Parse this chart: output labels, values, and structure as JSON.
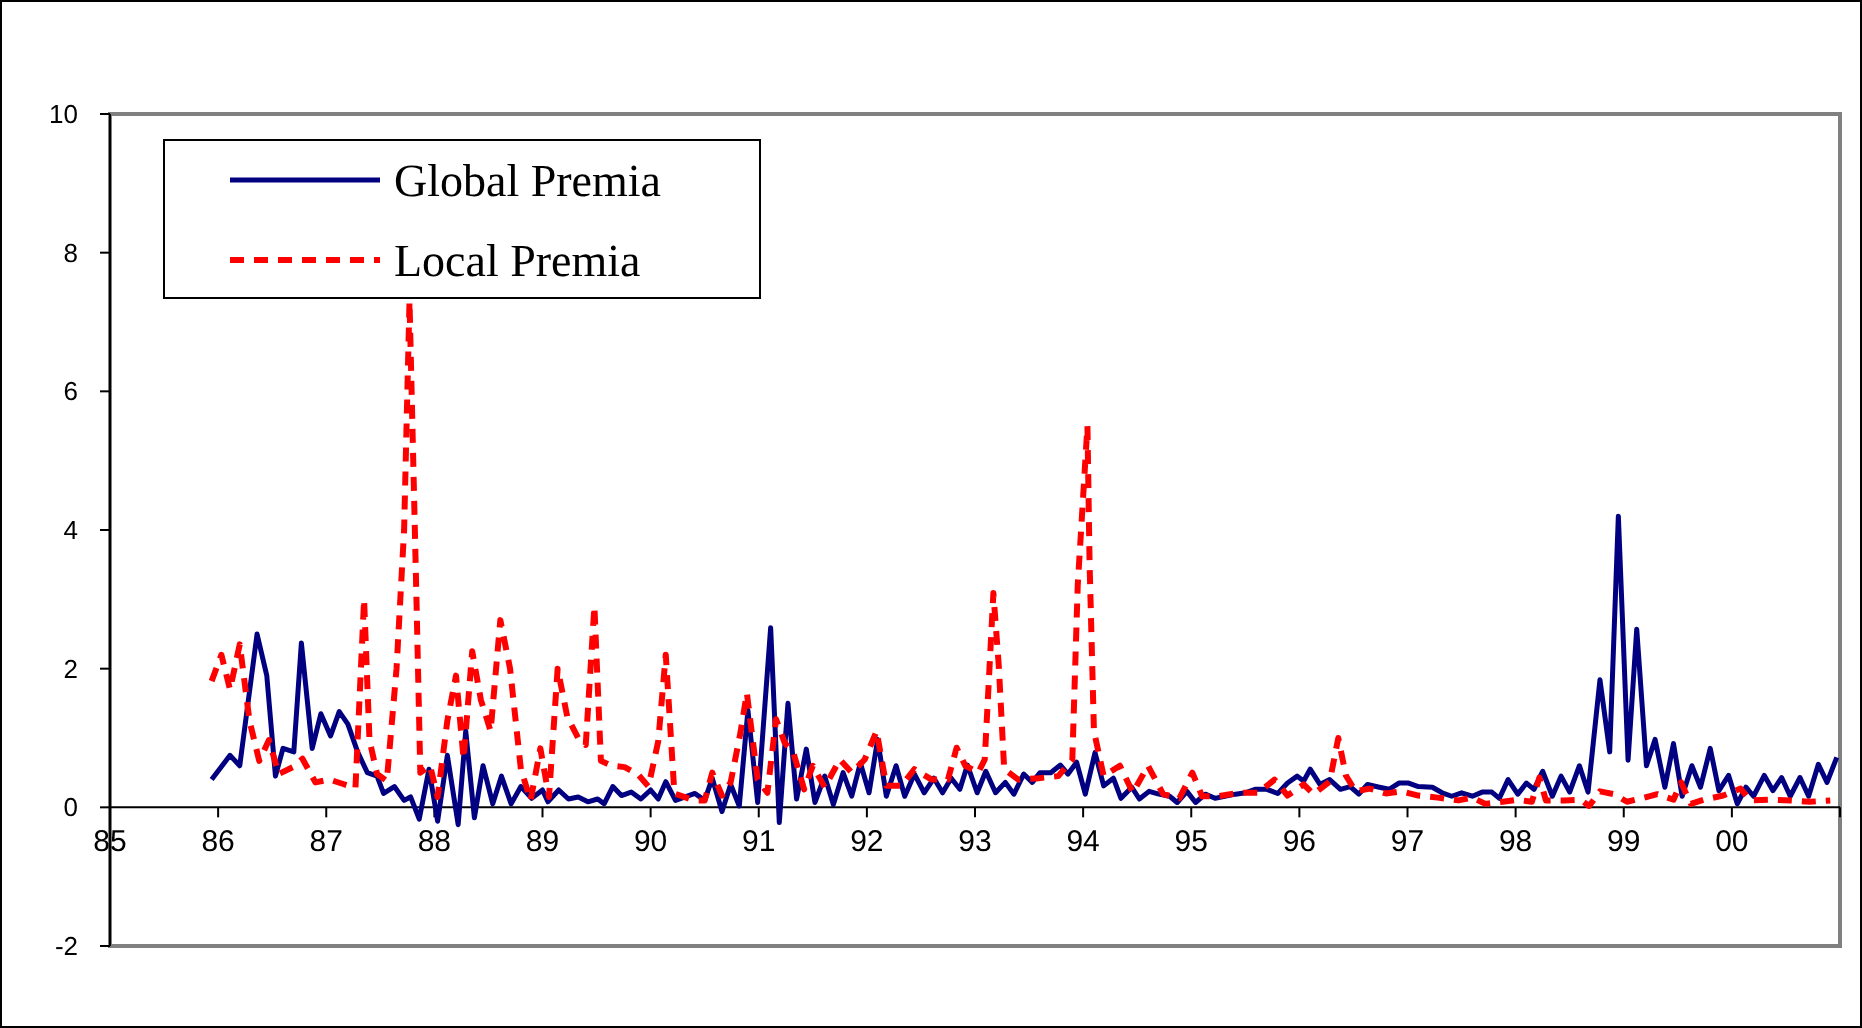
{
  "chart_data": {
    "type": "line",
    "xlim": [
      1985,
      2001
    ],
    "xticks": [
      {
        "value": 1985,
        "label": "85"
      },
      {
        "value": 1986,
        "label": "86"
      },
      {
        "value": 1987,
        "label": "87"
      },
      {
        "value": 1988,
        "label": "88"
      },
      {
        "value": 1989,
        "label": "89"
      },
      {
        "value": 1990,
        "label": "90"
      },
      {
        "value": 1991,
        "label": "91"
      },
      {
        "value": 1992,
        "label": "92"
      },
      {
        "value": 1993,
        "label": "93"
      },
      {
        "value": 1994,
        "label": "94"
      },
      {
        "value": 1995,
        "label": "95"
      },
      {
        "value": 1996,
        "label": "96"
      },
      {
        "value": 1997,
        "label": "97"
      },
      {
        "value": 1998,
        "label": "98"
      },
      {
        "value": 1999,
        "label": "99"
      },
      {
        "value": 2000,
        "label": "00"
      },
      {
        "value": 2001,
        "label": null
      }
    ],
    "ylim": [
      -2,
      10
    ],
    "yticks": [
      -2,
      0,
      2,
      4,
      6,
      8,
      10
    ],
    "grid": false,
    "legend": "top left",
    "marker": "none",
    "series": [
      {
        "name": "Global Premia",
        "color": "#000080",
        "line_style": "solid",
        "x": [
          1985.94,
          1986.11,
          1986.2,
          1986.36,
          1986.45,
          1986.53,
          1986.6,
          1986.7,
          1986.77,
          1986.87,
          1986.95,
          1987.04,
          1987.12,
          1987.2,
          1987.29,
          1987.38,
          1987.47,
          1987.53,
          1987.63,
          1987.72,
          1987.78,
          1987.86,
          1987.95,
          1988.03,
          1988.12,
          1988.22,
          1988.29,
          1988.37,
          1988.45,
          1988.54,
          1988.62,
          1988.71,
          1988.8,
          1988.9,
          1989.0,
          1989.05,
          1989.15,
          1989.24,
          1989.33,
          1989.42,
          1989.51,
          1989.57,
          1989.65,
          1989.73,
          1989.82,
          1989.91,
          1990.0,
          1990.07,
          1990.14,
          1990.23,
          1990.32,
          1990.41,
          1990.5,
          1990.57,
          1990.66,
          1990.74,
          1990.82,
          1990.9,
          1990.99,
          1991.11,
          1991.19,
          1991.27,
          1991.35,
          1991.44,
          1991.52,
          1991.61,
          1991.69,
          1991.78,
          1991.86,
          1991.94,
          1992.02,
          1992.1,
          1992.18,
          1992.27,
          1992.35,
          1992.44,
          1992.53,
          1992.62,
          1992.7,
          1992.78,
          1992.86,
          1992.93,
          1993.02,
          1993.1,
          1993.19,
          1993.28,
          1993.36,
          1993.45,
          1993.53,
          1993.6,
          1993.7,
          1993.79,
          1993.86,
          1993.94,
          1994.02,
          1994.11,
          1994.19,
          1994.28,
          1994.35,
          1994.45,
          1994.52,
          1994.61,
          1994.7,
          1994.8,
          1994.87,
          1994.96,
          1995.04,
          1995.13,
          1995.22,
          1995.31,
          1995.41,
          1995.5,
          1995.59,
          1995.7,
          1995.8,
          1995.89,
          1995.98,
          1996.04,
          1996.1,
          1996.19,
          1996.28,
          1996.38,
          1996.47,
          1996.55,
          1996.63,
          1996.74,
          1996.83,
          1996.92,
          1997.01,
          1997.1,
          1997.23,
          1997.32,
          1997.41,
          1997.5,
          1997.6,
          1997.69,
          1997.78,
          1997.85,
          1997.93,
          1998.02,
          1998.1,
          1998.17,
          1998.25,
          1998.34,
          1998.42,
          1998.5,
          1998.59,
          1998.67,
          1998.78,
          1998.87,
          1998.95,
          1999.04,
          1999.12,
          1999.21,
          1999.29,
          1999.38,
          1999.46,
          1999.54,
          1999.63,
          1999.71,
          1999.8,
          1999.88,
          1999.97,
          2000.05,
          2000.13,
          2000.2,
          2000.3,
          2000.38,
          2000.46,
          2000.54,
          2000.63,
          2000.71,
          2000.8,
          2000.88,
          2000.97
        ],
        "values": [
          0.4,
          0.75,
          0.6,
          2.5,
          1.9,
          0.45,
          0.85,
          0.8,
          2.37,
          0.85,
          1.35,
          1.03,
          1.38,
          1.2,
          0.8,
          0.5,
          0.45,
          0.2,
          0.3,
          0.1,
          0.15,
          -0.17,
          0.55,
          -0.2,
          0.75,
          -0.25,
          1.1,
          -0.15,
          0.6,
          0.05,
          0.45,
          0.05,
          0.3,
          0.13,
          0.25,
          0.08,
          0.25,
          0.12,
          0.15,
          0.08,
          0.12,
          0.05,
          0.3,
          0.17,
          0.22,
          0.12,
          0.25,
          0.12,
          0.37,
          0.1,
          0.15,
          0.2,
          0.1,
          0.42,
          -0.06,
          0.33,
          0.02,
          1.4,
          0.07,
          2.59,
          -0.22,
          1.5,
          0.12,
          0.84,
          0.07,
          0.45,
          0.04,
          0.5,
          0.16,
          0.64,
          0.21,
          0.98,
          0.16,
          0.6,
          0.16,
          0.48,
          0.21,
          0.42,
          0.21,
          0.42,
          0.26,
          0.61,
          0.21,
          0.52,
          0.21,
          0.36,
          0.19,
          0.48,
          0.36,
          0.5,
          0.5,
          0.61,
          0.48,
          0.65,
          0.19,
          0.79,
          0.31,
          0.42,
          0.13,
          0.29,
          0.12,
          0.23,
          0.19,
          0.16,
          0.07,
          0.23,
          0.07,
          0.19,
          0.13,
          0.16,
          0.19,
          0.21,
          0.26,
          0.26,
          0.2,
          0.35,
          0.45,
          0.38,
          0.55,
          0.33,
          0.4,
          0.26,
          0.3,
          0.19,
          0.33,
          0.29,
          0.26,
          0.35,
          0.35,
          0.3,
          0.29,
          0.21,
          0.16,
          0.21,
          0.16,
          0.22,
          0.22,
          0.13,
          0.4,
          0.19,
          0.35,
          0.26,
          0.52,
          0.16,
          0.45,
          0.22,
          0.6,
          0.22,
          1.84,
          0.8,
          4.2,
          0.68,
          2.57,
          0.6,
          0.98,
          0.29,
          0.92,
          0.16,
          0.6,
          0.29,
          0.85,
          0.24,
          0.46,
          0.05,
          0.29,
          0.16,
          0.46,
          0.24,
          0.43,
          0.16,
          0.43,
          0.16,
          0.62,
          0.36,
          0.72
        ]
      },
      {
        "name": "Local Premia",
        "color": "#ff0000",
        "line_style": "dashed",
        "x": [
          1985.94,
          1986.03,
          1986.11,
          1986.2,
          1986.29,
          1986.38,
          1986.47,
          1986.56,
          1986.69,
          1986.78,
          1986.9,
          1987.03,
          1987.15,
          1987.27,
          1987.35,
          1987.4,
          1987.47,
          1987.56,
          1987.65,
          1987.72,
          1987.77,
          1987.83,
          1987.87,
          1987.96,
          1988.03,
          1988.12,
          1988.2,
          1988.27,
          1988.35,
          1988.43,
          1988.52,
          1988.61,
          1988.7,
          1988.8,
          1988.89,
          1988.98,
          1989.06,
          1989.14,
          1989.23,
          1989.33,
          1989.4,
          1989.48,
          1989.54,
          1989.64,
          1989.76,
          1989.88,
          1989.98,
          1990.07,
          1990.14,
          1990.22,
          1990.31,
          1990.4,
          1990.5,
          1990.57,
          1990.66,
          1990.74,
          1990.83,
          1990.89,
          1990.99,
          1991.08,
          1991.16,
          1991.24,
          1991.32,
          1991.42,
          1991.5,
          1991.61,
          1991.75,
          1991.86,
          1991.98,
          1992.09,
          1992.18,
          1992.32,
          1992.44,
          1992.6,
          1992.75,
          1992.83,
          1992.91,
          1993.03,
          1993.09,
          1993.17,
          1993.22,
          1993.27,
          1993.4,
          1993.59,
          1993.77,
          1993.9,
          1993.95,
          1994.04,
          1994.06,
          1994.1,
          1994.19,
          1994.34,
          1994.46,
          1994.6,
          1994.74,
          1994.89,
          1995.01,
          1995.1,
          1995.25,
          1995.44,
          1995.62,
          1995.77,
          1995.89,
          1996.04,
          1996.13,
          1996.28,
          1996.36,
          1996.43,
          1996.52,
          1996.65,
          1996.8,
          1996.95,
          1997.1,
          1997.28,
          1997.47,
          1997.6,
          1997.72,
          1997.88,
          1998.02,
          1998.15,
          1998.22,
          1998.28,
          1998.45,
          1998.6,
          1998.68,
          1998.78,
          1998.91,
          1999.03,
          1999.19,
          1999.31,
          1999.46,
          1999.53,
          1999.62,
          1999.74,
          1999.92,
          2000.08,
          2000.17,
          2000.35,
          2000.54,
          2000.72,
          2000.91
        ],
        "values": [
          1.82,
          2.2,
          1.7,
          2.35,
          1.25,
          0.67,
          0.97,
          0.48,
          0.58,
          0.7,
          0.36,
          0.4,
          0.34,
          0.28,
          3.0,
          0.97,
          0.48,
          0.38,
          2.0,
          4.0,
          7.3,
          3.3,
          0.5,
          0.6,
          0.15,
          1.25,
          1.9,
          0.7,
          2.25,
          1.55,
          1.1,
          2.7,
          2.0,
          0.55,
          0.1,
          0.85,
          0.15,
          2.0,
          1.3,
          1.0,
          0.9,
          2.9,
          0.67,
          0.6,
          0.58,
          0.48,
          0.3,
          0.95,
          2.2,
          0.2,
          0.15,
          0.1,
          0.1,
          0.5,
          0.17,
          0.36,
          1.07,
          1.65,
          0.4,
          0.21,
          1.27,
          0.93,
          0.79,
          0.26,
          0.6,
          0.29,
          0.69,
          0.5,
          0.69,
          1.1,
          0.31,
          0.31,
          0.55,
          0.4,
          0.4,
          0.86,
          0.6,
          0.5,
          0.69,
          3.09,
          2.04,
          0.55,
          0.4,
          0.42,
          0.45,
          0.69,
          3.2,
          5.5,
          3.5,
          1.1,
          0.45,
          0.6,
          0.21,
          0.6,
          0.19,
          0.13,
          0.5,
          0.16,
          0.16,
          0.21,
          0.21,
          0.4,
          0.17,
          0.33,
          0.19,
          0.37,
          1.0,
          0.46,
          0.23,
          0.27,
          0.2,
          0.23,
          0.17,
          0.14,
          0.1,
          0.14,
          0.05,
          0.08,
          0.11,
          0.08,
          0.43,
          0.1,
          0.1,
          0.11,
          0.02,
          0.23,
          0.19,
          0.08,
          0.14,
          0.19,
          0.11,
          0.36,
          0.05,
          0.11,
          0.17,
          0.27,
          0.1,
          0.11,
          0.1,
          0.08,
          0.1
        ]
      }
    ]
  }
}
